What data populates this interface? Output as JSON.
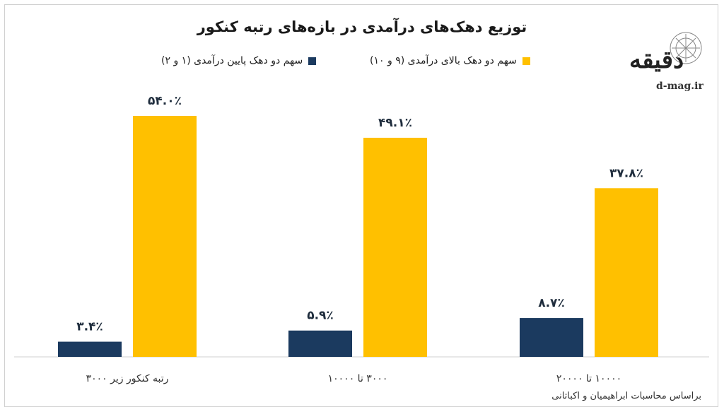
{
  "title": "توزیع دهک‌های درآمدی در بازه‌های رتبه کنکور",
  "source_note": "براساس محاسبات ابراهیمیان و اکباتانی",
  "brand": {
    "site": "d-mag.ir",
    "logo_text": "دقیقه",
    "icon": "d-mag-logo-icon"
  },
  "colors": {
    "low_deciles": "#1b3a5f",
    "high_deciles": "#ffc000",
    "axis": "#d0d0d0"
  },
  "chart_data": {
    "type": "bar",
    "title": "توزیع دهک‌های درآمدی در بازه‌های رتبه کنکور",
    "categories": [
      "رتبه کنکور زیر ۳۰۰۰",
      "۳۰۰۰ تا ۱۰۰۰۰",
      "۱۰۰۰۰ تا ۲۰۰۰۰"
    ],
    "series": [
      {
        "name": "سهم دو دهک پایین درآمدی (۱ و ۲)",
        "values": [
          3.4,
          5.9,
          8.7
        ],
        "labels": [
          "۳.۴٪",
          "۵.۹٪",
          "۸.۷٪"
        ],
        "color": "#1b3a5f"
      },
      {
        "name": "سهم دو دهک بالای درآمدی (۹ و ۱۰)",
        "values": [
          54.0,
          49.1,
          37.8
        ],
        "labels": [
          "۵۴.۰٪",
          "۴۹.۱٪",
          "۳۷.۸٪"
        ],
        "color": "#ffc000"
      }
    ],
    "ylim": [
      0,
      60
    ],
    "grid": false,
    "legend": "top",
    "xlabel": "",
    "ylabel": ""
  }
}
